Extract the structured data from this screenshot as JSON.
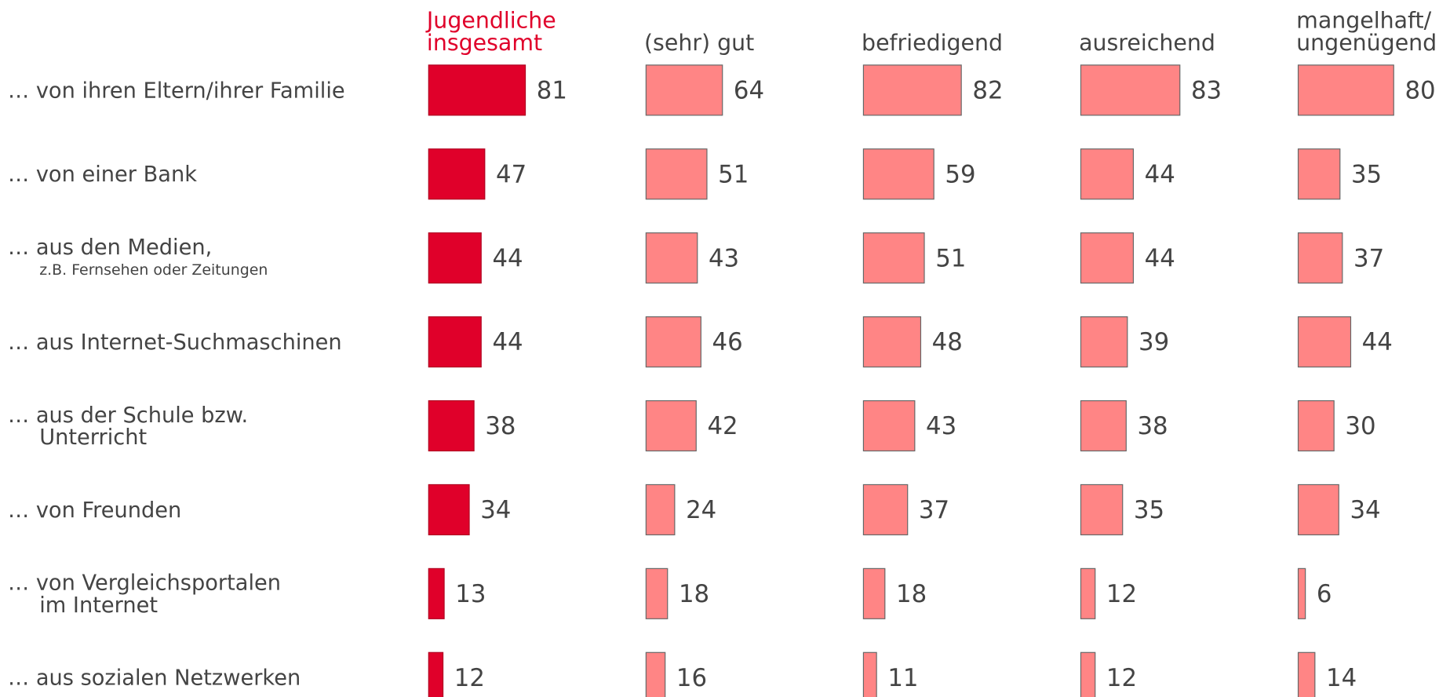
{
  "chart_data": {
    "type": "bar",
    "categories": [
      [
        "… von ihren Eltern/ihrer Familie"
      ],
      [
        "… von einer Bank"
      ],
      [
        "… aus den Medien,",
        "z.B. Fernsehen oder Zeitungen"
      ],
      [
        "… aus Internet-Suchmaschinen"
      ],
      [
        "… aus der Schule bzw.",
        "Unterricht"
      ],
      [
        "… von Freunden"
      ],
      [
        "… von Vergleichsportalen",
        "im Internet"
      ],
      [
        "… aus sozialen Netzwerken"
      ]
    ],
    "series": [
      {
        "name": [
          "Jugendliche",
          "insgesamt"
        ],
        "color": "#e0002a",
        "values": [
          81,
          47,
          44,
          44,
          38,
          34,
          13,
          12
        ]
      },
      {
        "name": [
          "(sehr) gut"
        ],
        "color": "#ff8585",
        "values": [
          64,
          51,
          43,
          46,
          42,
          24,
          18,
          16
        ]
      },
      {
        "name": [
          "befriedigend"
        ],
        "color": "#ff8585",
        "values": [
          82,
          59,
          51,
          48,
          43,
          37,
          18,
          11
        ]
      },
      {
        "name": [
          "ausreichend"
        ],
        "color": "#ff8585",
        "values": [
          83,
          44,
          44,
          39,
          38,
          35,
          12,
          12
        ]
      },
      {
        "name": [
          "mangelhaft/",
          "ungenügend"
        ],
        "color": "#ff8585",
        "values": [
          80,
          35,
          37,
          44,
          30,
          34,
          6,
          14
        ]
      }
    ]
  }
}
